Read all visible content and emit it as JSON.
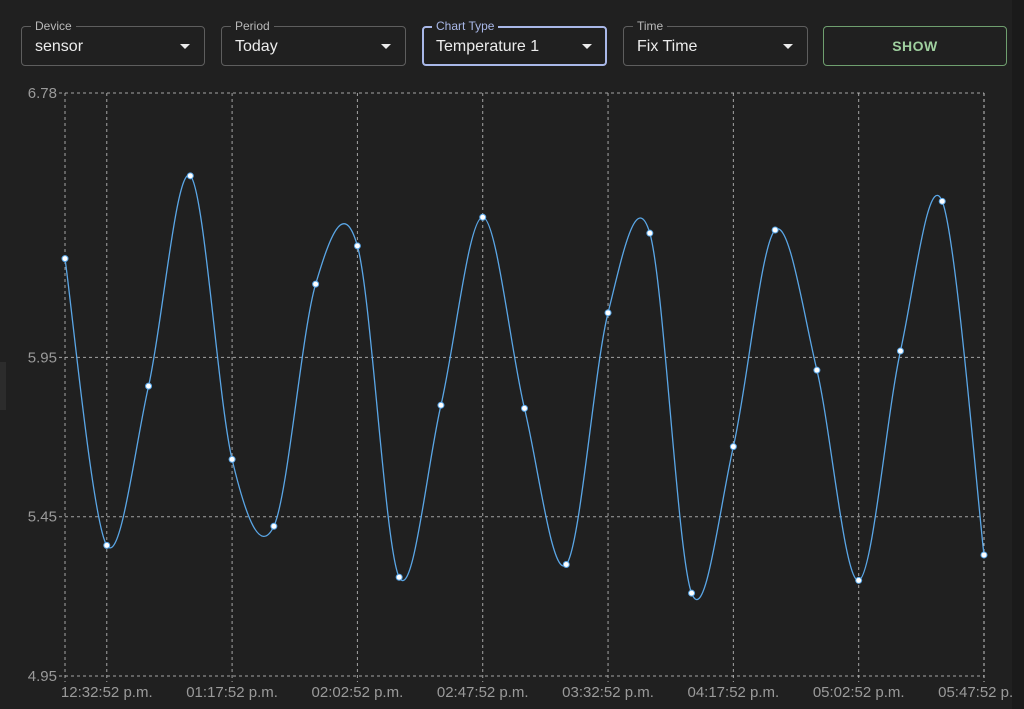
{
  "filters": {
    "device": {
      "label": "Device",
      "value": "sensor"
    },
    "period": {
      "label": "Period",
      "value": "Today"
    },
    "chart_type": {
      "label": "Chart Type",
      "value": "Temperature 1"
    },
    "time": {
      "label": "Time",
      "value": "Fix Time"
    }
  },
  "show_button": {
    "label": "SHOW"
  },
  "colors": {
    "line": "#5aa6e6",
    "point_fill": "#ffffff",
    "grid": "#cfcfcf",
    "accent_focus": "#a9b8e8",
    "button": "#9fd09f"
  },
  "chart_data": {
    "type": "line",
    "title": "",
    "xlabel": "",
    "ylabel": "",
    "ylim": [
      4.95,
      6.78
    ],
    "y_ticks": [
      "4.95",
      "5.45",
      "5.95",
      "6.78"
    ],
    "y_tick_values": [
      4.95,
      5.45,
      5.95,
      6.78
    ],
    "x_tick_labels": [
      "12:32:52 p.m.",
      "01:17:52 p.m.",
      "02:02:52 p.m.",
      "02:47:52 p.m.",
      "03:32:52 p.m.",
      "04:17:52 p.m.",
      "05:02:52 p.m.",
      "05:47:52 p.m."
    ],
    "x_tick_index": [
      1,
      4,
      7,
      10,
      13,
      16,
      19,
      22
    ],
    "grid": true,
    "series": [
      {
        "values": [
          6.26,
          5.36,
          5.86,
          6.52,
          5.63,
          5.42,
          6.18,
          6.3,
          5.26,
          5.8,
          6.39,
          5.79,
          5.3,
          6.09,
          6.34,
          5.21,
          5.67,
          6.35,
          5.91,
          5.25,
          5.97,
          6.44,
          5.33
        ]
      }
    ]
  }
}
